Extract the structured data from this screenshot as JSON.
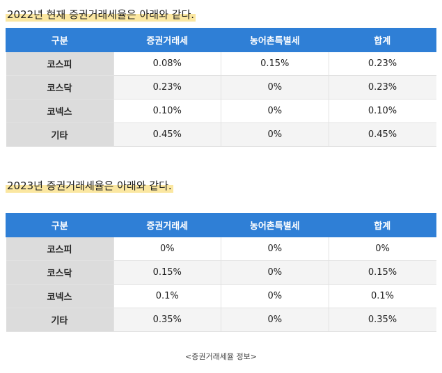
{
  "section1": {
    "heading": "2022년 현재 증권거래세율은 아래와 같다.",
    "headers": [
      "구분",
      "증권거래세",
      "농어촌특별세",
      "합계"
    ],
    "rows": [
      [
        "코스피",
        "0.08%",
        "0.15%",
        "0.23%"
      ],
      [
        "코스닥",
        "0.23%",
        "0%",
        "0.23%"
      ],
      [
        "코넥스",
        "0.10%",
        "0%",
        "0.10%"
      ],
      [
        "기타",
        "0.45%",
        "0%",
        "0.45%"
      ]
    ]
  },
  "section2": {
    "heading": "2023년 증권거래세율은 아래와 같다.",
    "headers": [
      "구분",
      "증권거래세",
      "농어촌특별세",
      "합계"
    ],
    "rows": [
      [
        "코스피",
        "0%",
        "0%",
        "0%"
      ],
      [
        "코스닥",
        "0.15%",
        "0%",
        "0.15%"
      ],
      [
        "코넥스",
        "0.1%",
        "0%",
        "0.1%"
      ],
      [
        "기타",
        "0.35%",
        "0%",
        "0.35%"
      ]
    ]
  },
  "caption": "<증권거래세율 정보>",
  "colors": {
    "header_bg": "#2f7fd6",
    "row_head_bg": "#dcdcdc",
    "highlight": "#fbe7a1"
  }
}
